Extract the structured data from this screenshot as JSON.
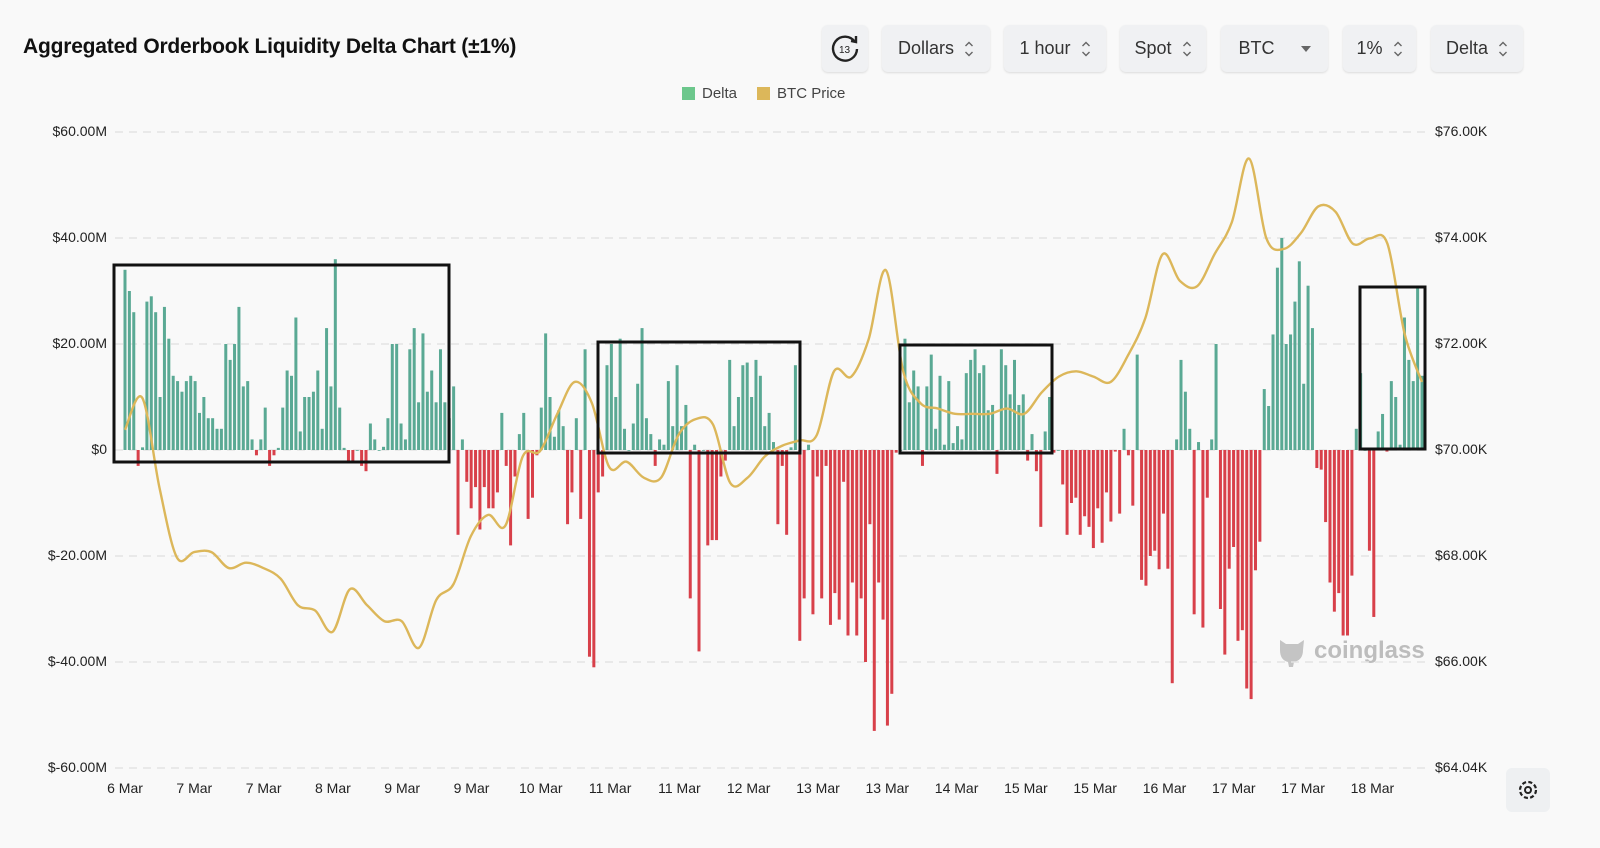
{
  "title": "Aggregated Orderbook Liquidity Delta Chart (±1%)",
  "controls": {
    "refresh_badge": "13",
    "unit": "Dollars",
    "interval": "1 hour",
    "market": "Spot",
    "coin": "BTC",
    "range": "1%",
    "mode": "Delta"
  },
  "watermark": "coinglass",
  "colors": {
    "delta_positive": "#5aa994",
    "delta_negative": "#d8404a",
    "price": "#dcb75a",
    "legend_delta": "#6cc78c",
    "legend_price": "#dcb75a"
  },
  "chart_data": {
    "type": "bar",
    "title": "Aggregated Orderbook Liquidity Delta Chart (±1%)",
    "legend": [
      "Delta",
      "BTC Price"
    ],
    "legend_position": "top",
    "grid": true,
    "x_tick_labels": [
      "6 Mar",
      "7 Mar",
      "7 Mar",
      "8 Mar",
      "9 Mar",
      "9 Mar",
      "10 Mar",
      "11 Mar",
      "11 Mar",
      "12 Mar",
      "13 Mar",
      "13 Mar",
      "14 Mar",
      "15 Mar",
      "15 Mar",
      "16 Mar",
      "17 Mar",
      "17 Mar",
      "18 Mar"
    ],
    "y_left": {
      "ticks": [
        "$60.00M",
        "$40.00M",
        "$20.00M",
        "$0",
        "$-20.00M",
        "$-40.00M",
        "$-60.00M"
      ],
      "range": [
        -60,
        60
      ],
      "unit": "M USD"
    },
    "y_right": {
      "ticks": [
        "$76.00K",
        "$74.00K",
        "$72.00K",
        "$70.00K",
        "$68.00K",
        "$66.00K",
        "$64.04K"
      ],
      "range": [
        64.04,
        76
      ],
      "unit": "K USD"
    },
    "series": [
      {
        "name": "Delta",
        "type": "bar",
        "interval": "1 hour",
        "values": [
          34,
          30,
          26,
          -3,
          0.5,
          28,
          29,
          26,
          10,
          27,
          21,
          14,
          13,
          11,
          13,
          14,
          13,
          7,
          10,
          6,
          6,
          4,
          4,
          20,
          17,
          20,
          27,
          12,
          13,
          2,
          -1,
          2,
          8,
          -3,
          -1,
          0.4,
          8,
          15,
          14,
          25,
          3.5,
          10,
          10,
          11,
          15,
          4,
          23,
          12,
          36,
          8,
          0.4,
          -2,
          -2,
          0,
          -3,
          -4,
          5,
          2,
          0,
          0.6,
          6,
          20,
          20,
          5,
          2,
          19,
          23,
          9,
          22,
          11,
          15,
          9,
          19,
          9,
          6,
          12,
          -16,
          2,
          -6,
          -11,
          -7,
          -15,
          -7,
          -11,
          -11,
          -8,
          7,
          -3,
          -18,
          -5,
          3,
          7,
          -13,
          -9,
          -1,
          8,
          22,
          10,
          2.5,
          7.5,
          4.5,
          -14,
          -8,
          6,
          -13,
          19,
          -39,
          -41,
          -8,
          -5,
          16,
          20,
          10,
          21,
          4,
          0,
          5,
          12.5,
          23,
          6,
          3,
          -3,
          2,
          1,
          13,
          4.5,
          16,
          4.5,
          8.5,
          -28,
          1,
          -38,
          0,
          -18,
          -17,
          -17,
          -5,
          -2,
          17,
          4.5,
          10,
          16,
          16.5,
          10,
          17,
          14,
          4.5,
          7,
          1.5,
          -14,
          -3,
          -16,
          0.5,
          16,
          -36,
          -28,
          1,
          -31,
          -5,
          -28,
          -3,
          -33,
          -27,
          -32,
          -6,
          -35,
          -25,
          -35,
          -28,
          -40,
          -14,
          -53,
          -25,
          -32,
          -52,
          -46,
          -0.5,
          0,
          21,
          9,
          15,
          12,
          -3,
          12,
          18,
          4,
          14,
          1,
          13,
          1.3,
          4.5,
          2,
          14.5,
          17,
          19,
          14.5,
          16,
          7.5,
          8.5,
          -4.5,
          19,
          16,
          10.5,
          17,
          8.5,
          10.5,
          -2,
          3,
          -4,
          -14.5,
          3.5,
          10,
          -0.5,
          0,
          -6.5,
          -16,
          -10,
          -9,
          -16,
          -12.5,
          -14.5,
          -18.5,
          -11,
          -17.5,
          -8,
          -13.5,
          -0.3,
          -12,
          4,
          -1,
          -10.5,
          18,
          -24.5,
          -25.6,
          -20,
          -19,
          -22.5,
          -12,
          -22.4,
          -44,
          2,
          17,
          11,
          4,
          -31,
          1.5,
          -33.5,
          -9,
          2,
          20,
          -30,
          -38.6,
          -22.4,
          -18.3,
          -36,
          -34,
          -45,
          -47,
          -22.7,
          -17.3,
          11.5,
          8.3,
          21.8,
          34.4,
          40,
          20,
          21.8,
          28,
          35.6,
          12.5,
          31,
          23,
          -3.4,
          -3.7,
          -13.6,
          -25,
          -30.5,
          -27,
          -35,
          -35,
          -23.7,
          4,
          14.5,
          0,
          -19,
          -31.5,
          3.5,
          6.8,
          -0.3,
          13,
          10,
          1,
          25,
          17,
          13,
          31,
          14
        ]
      },
      {
        "name": "BTC Price",
        "type": "line",
        "interval": "4 hours",
        "values": [
          70.4,
          71.0,
          69.3,
          68.0,
          68.1,
          68.1,
          67.8,
          67.9,
          67.8,
          67.6,
          67.1,
          67.0,
          66.6,
          67.4,
          67.1,
          66.8,
          66.8,
          66.3,
          67.2,
          67.5,
          68.4,
          68.8,
          68.6,
          69.9,
          70.0,
          70.7,
          71.3,
          70.9,
          69.7,
          69.8,
          69.5,
          69.5,
          70.3,
          70.6,
          70.5,
          69.4,
          69.5,
          69.9,
          70.1,
          70.2,
          70.3,
          71.5,
          71.4,
          72.1,
          73.4,
          71.5,
          70.9,
          70.8,
          70.7,
          70.7,
          70.7,
          70.8,
          70.7,
          71.1,
          71.4,
          71.5,
          71.4,
          71.3,
          71.8,
          72.5,
          73.7,
          73.2,
          73.1,
          73.7,
          74.3,
          75.5,
          74.0,
          73.8,
          74.1,
          74.6,
          74.5,
          73.9,
          74.0,
          73.9,
          72.2,
          71.3
        ]
      }
    ]
  }
}
